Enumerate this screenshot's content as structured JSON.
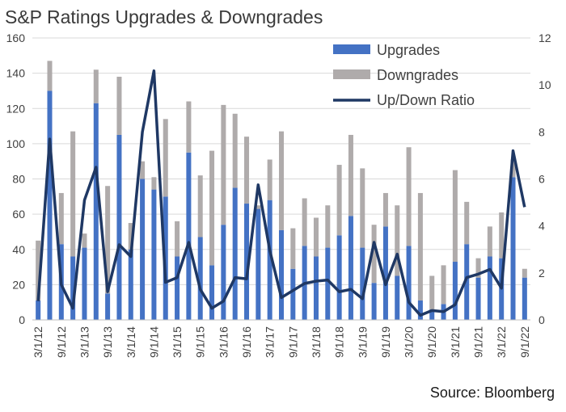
{
  "chart_data": {
    "title": "S&P Ratings Upgrades & Downgrades",
    "source": "Source: Bloomberg",
    "type": "bar",
    "stacked": true,
    "x_tick_labels": [
      "3/1/12",
      "9/1/12",
      "3/1/13",
      "9/1/13",
      "3/1/14",
      "9/1/14",
      "3/1/15",
      "9/1/15",
      "3/1/16",
      "9/1/16",
      "3/1/17",
      "9/1/17",
      "3/1/18",
      "9/1/18",
      "3/1/19",
      "9/1/19",
      "3/1/20",
      "9/1/20",
      "3/1/21",
      "9/1/21",
      "3/1/22",
      "9/1/22"
    ],
    "y_left": {
      "lim": [
        0,
        160
      ],
      "ticks": [
        0,
        20,
        40,
        60,
        80,
        100,
        120,
        140,
        160
      ]
    },
    "y_right": {
      "lim": [
        0,
        12
      ],
      "ticks": [
        0,
        2,
        4,
        6,
        8,
        10,
        12
      ]
    },
    "legend": {
      "position": "top-right",
      "entries": [
        "Upgrades",
        "Downgrades",
        "Up/Down Ratio"
      ]
    },
    "grid": {
      "horizontal": true,
      "vertical": false
    },
    "colors": {
      "upgrades": "#4472c4",
      "downgrades": "#afabab",
      "ratio": "#1f3864"
    },
    "series": [
      {
        "name": "Upgrades",
        "axis": "left",
        "kind": "bar",
        "values": [
          11,
          130,
          43,
          36,
          41,
          123,
          15,
          105,
          40,
          80,
          74,
          70,
          36,
          95,
          47,
          31,
          54,
          75,
          66,
          63,
          68,
          51,
          29,
          42,
          36,
          41,
          48,
          59,
          41,
          21,
          53,
          25,
          42,
          11,
          6,
          9,
          33,
          43,
          24,
          36,
          35,
          81,
          24
        ]
      },
      {
        "name": "Downgrades",
        "axis": "left",
        "kind": "bar",
        "values": [
          34,
          17,
          29,
          71,
          8,
          19,
          61,
          33,
          15,
          10,
          7,
          44,
          20,
          29,
          35,
          65,
          68,
          42,
          38,
          2,
          23,
          56,
          23,
          27,
          22,
          24,
          40,
          46,
          45,
          33,
          19,
          40,
          56,
          61,
          19,
          22,
          52,
          24,
          11,
          17,
          26,
          10,
          5
        ]
      },
      {
        "name": "Up/Down Ratio",
        "axis": "right",
        "kind": "line",
        "values": [
          0.8,
          7.7,
          1.5,
          0.5,
          5.1,
          6.5,
          1.2,
          3.2,
          2.7,
          8.0,
          10.6,
          1.6,
          1.8,
          3.3,
          1.3,
          0.5,
          0.8,
          1.8,
          1.75,
          5.75,
          2.95,
          0.95,
          1.25,
          1.55,
          1.65,
          1.7,
          1.2,
          1.3,
          0.9,
          3.3,
          1.5,
          2.8,
          0.75,
          0.2,
          0.4,
          0.35,
          0.65,
          1.8,
          1.95,
          2.15,
          1.35,
          7.2,
          4.8
        ]
      }
    ]
  }
}
